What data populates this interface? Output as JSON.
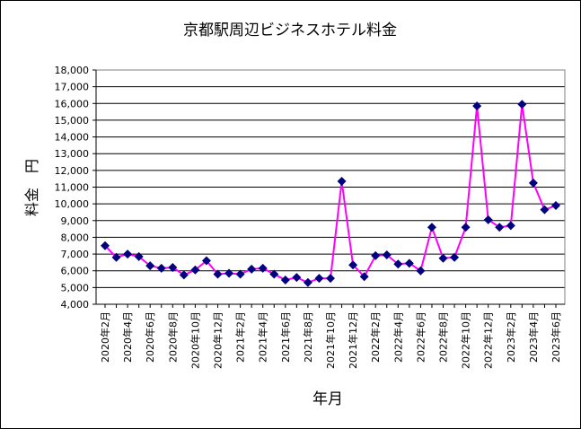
{
  "chart_data": {
    "type": "line",
    "title": "京都駅周辺ビジネスホテル料金",
    "xlabel": "年月",
    "ylabel": "料金　円",
    "ylim": [
      4000,
      18000
    ],
    "ytick_step": 1000,
    "grid": true,
    "legend": "none",
    "colors": {
      "line": "#ff00ff",
      "marker": "#000080",
      "grid": "#000000",
      "plot_bg": "#ffffff"
    },
    "x": [
      "2020年2月",
      "2020年3月",
      "2020年4月",
      "2020年5月",
      "2020年6月",
      "2020年7月",
      "2020年8月",
      "2020年9月",
      "2020年10月",
      "2020年11月",
      "2020年12月",
      "2021年1月",
      "2021年2月",
      "2021年3月",
      "2021年4月",
      "2021年5月",
      "2021年6月",
      "2021年7月",
      "2021年8月",
      "2021年9月",
      "2021年10月",
      "2021年11月",
      "2021年12月",
      "2022年1月",
      "2022年2月",
      "2022年3月",
      "2022年4月",
      "2022年5月",
      "2022年6月",
      "2022年7月",
      "2022年8月",
      "2022年9月",
      "2022年10月",
      "2022年11月",
      "2022年12月",
      "2023年1月",
      "2023年2月",
      "2023年3月",
      "2023年4月",
      "2023年5月",
      "2023年6月"
    ],
    "x_tick_labels": [
      "2020年2月",
      "2020年4月",
      "2020年6月",
      "2020年8月",
      "2020年10月",
      "2020年12月",
      "2021年2月",
      "2021年4月",
      "2021年6月",
      "2021年8月",
      "2021年10月",
      "2021年12月",
      "2022年2月",
      "2022年4月",
      "2022年6月",
      "2022年8月",
      "2022年10月",
      "2022年12月",
      "2023年2月",
      "2023年4月",
      "2023年6月"
    ],
    "y_tick_labels": [
      "4,000",
      "5,000",
      "6,000",
      "7,000",
      "8,000",
      "9,000",
      "10,000",
      "11,000",
      "12,000",
      "13,000",
      "14,000",
      "15,000",
      "16,000",
      "17,000",
      "18,000"
    ],
    "values": [
      7500,
      6800,
      7000,
      6850,
      6300,
      6150,
      6200,
      5750,
      6050,
      6600,
      5800,
      5850,
      5800,
      6100,
      6150,
      5800,
      5450,
      5600,
      5300,
      5550,
      5550,
      11350,
      6350,
      5650,
      6900,
      6950,
      6400,
      6450,
      6000,
      8600,
      6750,
      6800,
      8600,
      15850,
      9050,
      8600,
      8700,
      15950,
      11250,
      9650,
      9900
    ]
  }
}
